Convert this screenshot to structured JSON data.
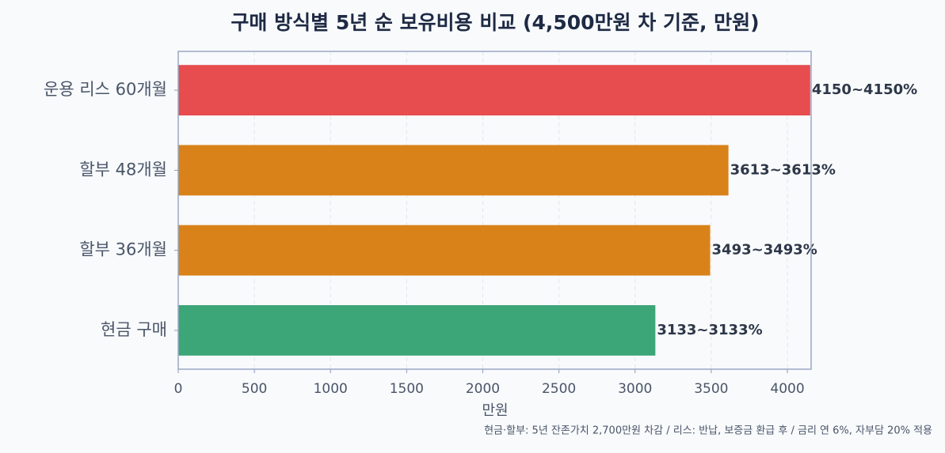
{
  "chart_data": {
    "type": "barh",
    "title": "구매 방식별 5년 순 보유비용 비교 (4,500만원 차 기준, 만원)",
    "x_label": "만원",
    "note": "현금·할부: 5년 잔존가치 2,700만원 차감 / 리스: 반납, 보증금 환급 후 / 금리 연 6%, 자부담 20% 적용",
    "categories": [
      "현금 구매",
      "할부 36개월",
      "할부 48개월",
      "운용 리스 60개월"
    ],
    "values": [
      3133,
      3493,
      3613,
      4150
    ],
    "value_labels": [
      "3133~3133%",
      "3493~3493%",
      "3613~3613%",
      "4150~4150%"
    ],
    "colors": [
      "#3ca678",
      "#d9821a",
      "#d9821a",
      "#e74c4e"
    ],
    "xlim": [
      0,
      4156
    ],
    "xticks": [
      0,
      500,
      1000,
      1500,
      2000,
      2500,
      3000,
      3500,
      4000
    ],
    "grid": true
  }
}
